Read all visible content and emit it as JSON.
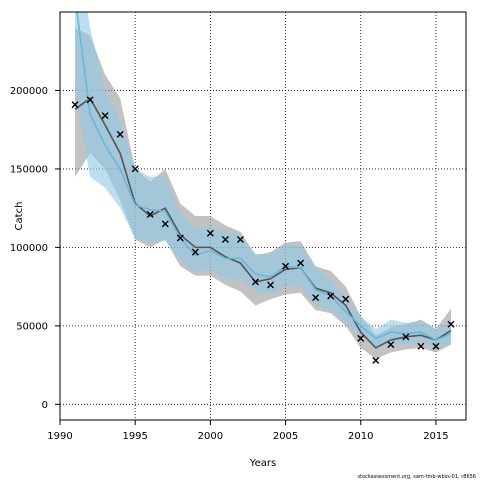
{
  "chart_data": {
    "type": "line",
    "xlabel": "Years",
    "ylabel": "Catch",
    "xlim": [
      1990,
      2017
    ],
    "ylim": [
      -10000,
      250000
    ],
    "x_ticks": [
      1990,
      1995,
      2000,
      2005,
      2010,
      2015
    ],
    "y_ticks": [
      0,
      50000,
      100000,
      150000,
      200000
    ],
    "grid": true,
    "grid_style": "dotted",
    "credit": "stockassessment.org, sam-tmb-wbss-01, r8656",
    "series": [
      {
        "kind": "estimate_with_ci",
        "color": "#555555",
        "band_color": "#999999",
        "x": [
          1991,
          1992,
          1993,
          1994,
          1995,
          1996,
          1997,
          1998,
          1999,
          2000,
          2001,
          2002,
          2003,
          2004,
          2005,
          2006,
          2007,
          2008,
          2009,
          2010,
          2011,
          2012,
          2013,
          2014,
          2015,
          2016
        ],
        "y": [
          188000,
          195000,
          178000,
          160000,
          128000,
          120000,
          125000,
          108000,
          100000,
          100000,
          94000,
          90000,
          78000,
          80000,
          86000,
          87000,
          74000,
          71000,
          63000,
          46000,
          36000,
          41000,
          43000,
          44000,
          41000,
          47000
        ],
        "lower": [
          145000,
          160000,
          150000,
          130000,
          105000,
          100000,
          105000,
          88000,
          82000,
          82000,
          76000,
          72000,
          63000,
          67000,
          70000,
          71000,
          60000,
          58000,
          50000,
          36000,
          29000,
          33000,
          35000,
          36000,
          33000,
          38000
        ],
        "upper": [
          240000,
          235000,
          210000,
          195000,
          150000,
          142000,
          150000,
          128000,
          120000,
          120000,
          114000,
          110000,
          95000,
          97000,
          103000,
          104000,
          88000,
          85000,
          75000,
          56000,
          44000,
          49000,
          51000,
          54000,
          48000,
          61000
        ]
      },
      {
        "kind": "estimate_with_ci",
        "color": "#6bb5dc",
        "band_color": "#8fc8e8",
        "x": [
          1991,
          1992,
          1993,
          1994,
          1995,
          1996,
          1997,
          1998,
          1999,
          2000,
          2001,
          2002,
          2003,
          2004,
          2005,
          2006,
          2007,
          2008,
          2009,
          2010,
          2011,
          2012,
          2013,
          2014,
          2015,
          2016
        ],
        "y": [
          260000,
          185000,
          165000,
          150000,
          127000,
          124000,
          123000,
          106000,
          95000,
          98000,
          93000,
          93000,
          83000,
          81000,
          88000,
          87000,
          73000,
          69000,
          59000,
          50000,
          42000,
          46000,
          45000,
          46000,
          41000,
          45000
        ],
        "lower": [
          200000,
          145000,
          138000,
          125000,
          106000,
          103000,
          104000,
          92000,
          84000,
          86000,
          80000,
          80000,
          72000,
          70000,
          76000,
          75000,
          63000,
          60000,
          52000,
          44000,
          36000,
          39000,
          38000,
          40000,
          36000,
          38000
        ],
        "upper": [
          300000,
          240000,
          200000,
          180000,
          150000,
          145000,
          145000,
          122000,
          112000,
          113000,
          110000,
          108000,
          96000,
          95000,
          102000,
          101000,
          87000,
          80000,
          68000,
          56000,
          48000,
          54000,
          52000,
          53000,
          48000,
          53000
        ]
      },
      {
        "kind": "observed",
        "marker": "x",
        "color": "#000000",
        "x": [
          1991,
          1992,
          1993,
          1994,
          1995,
          1996,
          1997,
          1998,
          1999,
          2000,
          2001,
          2002,
          2003,
          2004,
          2005,
          2006,
          2007,
          2008,
          2009,
          2010,
          2011,
          2012,
          2013,
          2014,
          2015,
          2016
        ],
        "y": [
          191000,
          194000,
          184000,
          172000,
          150000,
          121000,
          115000,
          106000,
          97000,
          109000,
          105000,
          105000,
          78000,
          76000,
          88000,
          90000,
          68000,
          69000,
          67000,
          42000,
          28000,
          38000,
          43000,
          37000,
          37000,
          51000
        ]
      }
    ]
  }
}
